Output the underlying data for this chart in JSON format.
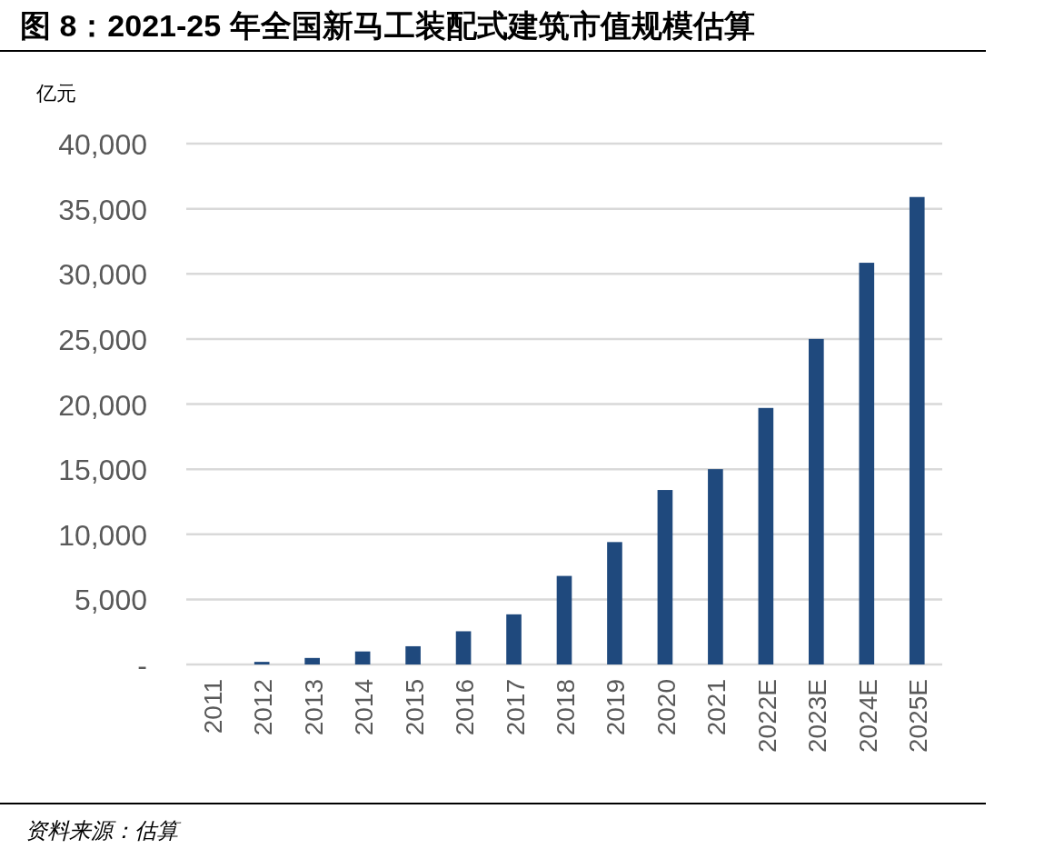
{
  "chart_data": {
    "type": "bar",
    "title": "图 8：2021-25 年全国新马工装配式建筑市值规模估算",
    "ylabel": "亿元",
    "categories": [
      "2011",
      "2012",
      "2013",
      "2014",
      "2015",
      "2016",
      "2017",
      "2018",
      "2019",
      "2020",
      "2021",
      "2022E",
      "2023E",
      "2024E",
      "2025E"
    ],
    "values": [
      0,
      200,
      500,
      1000,
      1400,
      2550,
      3850,
      6800,
      9400,
      13400,
      15000,
      19700,
      25000,
      30850,
      35900
    ],
    "color": "#1f497d",
    "ylim": [
      0,
      40000
    ],
    "yticks": [
      {
        "value": 0,
        "label": "-"
      },
      {
        "value": 5000,
        "label": "5,000"
      },
      {
        "value": 10000,
        "label": "10,000"
      },
      {
        "value": 15000,
        "label": "15,000"
      },
      {
        "value": 20000,
        "label": "20,000"
      },
      {
        "value": 25000,
        "label": "25,000"
      },
      {
        "value": 30000,
        "label": "30,000"
      },
      {
        "value": 35000,
        "label": "35,000"
      },
      {
        "value": 40000,
        "label": "40,000"
      }
    ],
    "grid": "y",
    "annotations": [
      "资料来源：估算"
    ]
  }
}
